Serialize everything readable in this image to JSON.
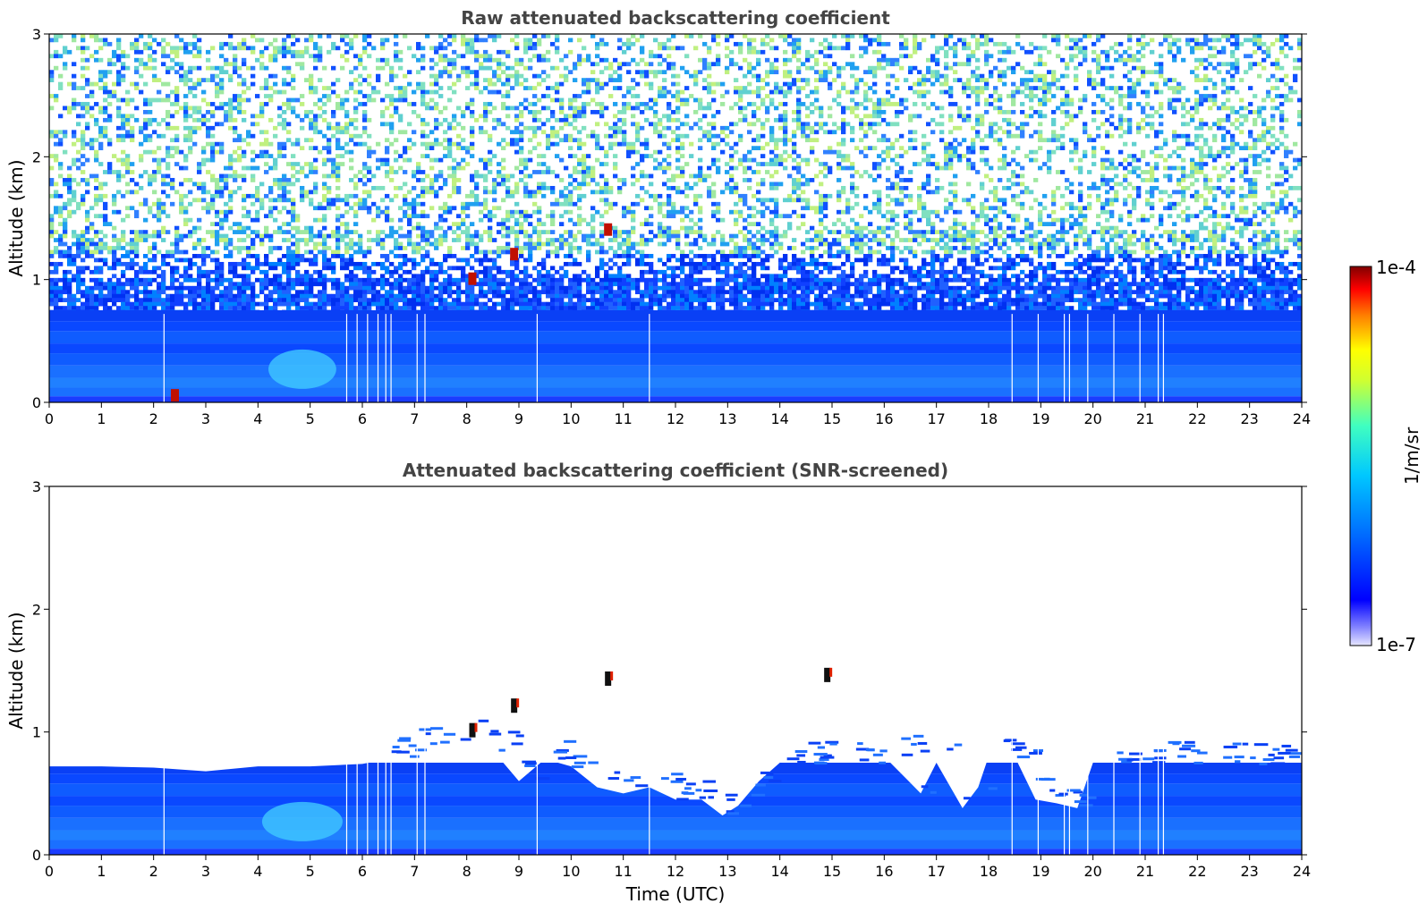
{
  "chart_data": [
    {
      "type": "heatmap",
      "title": "Raw attenuated backscattering coefficient",
      "xlabel": "",
      "ylabel": "Altitude (km)",
      "xlim": [
        0,
        24
      ],
      "ylim": [
        0,
        3
      ],
      "x_ticks": [
        "0",
        "1",
        "2",
        "3",
        "4",
        "5",
        "6",
        "7",
        "8",
        "9",
        "10",
        "11",
        "12",
        "13",
        "14",
        "15",
        "16",
        "17",
        "18",
        "19",
        "20",
        "21",
        "22",
        "23",
        "24"
      ],
      "y_ticks": [
        "0",
        "1",
        "2",
        "3"
      ],
      "features": {
        "boundary_layer_top_km": 0.72,
        "noisy_region_above_km": 0.72,
        "aerosol_plume": {
          "time_range": [
            4.2,
            5.5
          ],
          "altitude_km": [
            0.1,
            0.4
          ]
        },
        "strong_returns": [
          {
            "time": 8.1,
            "altitude_km": 1.0
          },
          {
            "time": 8.9,
            "altitude_km": 1.2
          },
          {
            "time": 10.7,
            "altitude_km": 1.4
          },
          {
            "time": 2.4,
            "altitude_km": 0.05
          }
        ],
        "gap_times": [
          2.2,
          5.7,
          5.9,
          6.1,
          6.3,
          6.45,
          6.55,
          7.05,
          7.2,
          9.35,
          11.5,
          18.45,
          18.95,
          19.45,
          19.55,
          19.9,
          20.4,
          20.9,
          21.25,
          21.35
        ]
      }
    },
    {
      "type": "heatmap",
      "title": "Attenuated backscattering coefficient (SNR-screened)",
      "xlabel": "Time (UTC)",
      "ylabel": "Altitude (km)",
      "xlim": [
        0,
        24
      ],
      "ylim": [
        0,
        3
      ],
      "x_ticks": [
        "0",
        "1",
        "2",
        "3",
        "4",
        "5",
        "6",
        "7",
        "8",
        "9",
        "10",
        "11",
        "12",
        "13",
        "14",
        "15",
        "16",
        "17",
        "18",
        "19",
        "20",
        "21",
        "22",
        "23",
        "24"
      ],
      "y_ticks": [
        "0",
        "1",
        "2",
        "3"
      ],
      "boundary_layer_top_km": [
        [
          0,
          0.72
        ],
        [
          1,
          0.72
        ],
        [
          2,
          0.71
        ],
        [
          3,
          0.68
        ],
        [
          4,
          0.72
        ],
        [
          5,
          0.72
        ],
        [
          6,
          0.74
        ],
        [
          6.5,
          0.78
        ],
        [
          7,
          0.86
        ],
        [
          7.5,
          0.9
        ],
        [
          8,
          0.95
        ],
        [
          8.5,
          0.85
        ],
        [
          9,
          0.6
        ],
        [
          9.5,
          0.78
        ],
        [
          10,
          0.72
        ],
        [
          10.5,
          0.55
        ],
        [
          11,
          0.5
        ],
        [
          11.5,
          0.55
        ],
        [
          12,
          0.45
        ],
        [
          12.5,
          0.45
        ],
        [
          12.9,
          0.32
        ],
        [
          13.2,
          0.4
        ],
        [
          13.6,
          0.6
        ],
        [
          14,
          0.75
        ],
        [
          15,
          0.75
        ],
        [
          16,
          0.8
        ],
        [
          16.7,
          0.5
        ],
        [
          17,
          0.75
        ],
        [
          17.5,
          0.38
        ],
        [
          17.8,
          0.55
        ],
        [
          18,
          0.8
        ],
        [
          18.5,
          0.8
        ],
        [
          18.9,
          0.45
        ],
        [
          19.3,
          0.42
        ],
        [
          19.7,
          0.38
        ],
        [
          20,
          0.75
        ],
        [
          24,
          0.75
        ]
      ],
      "strong_returns": [
        {
          "time": 8.1,
          "altitude_km": 1.0
        },
        {
          "time": 8.9,
          "altitude_km": 1.2
        },
        {
          "time": 10.7,
          "altitude_km": 1.42
        },
        {
          "time": 14.9,
          "altitude_km": 1.45
        }
      ]
    }
  ],
  "colorbar": {
    "max_label": "1e-4",
    "min_label": "1e-7",
    "unit_label": "1/m/sr",
    "colormap": [
      "#ffffff",
      "#0000ff",
      "#00a0ff",
      "#00ffff",
      "#80ff80",
      "#ffff00",
      "#ff8000",
      "#ff0000",
      "#800000"
    ]
  }
}
